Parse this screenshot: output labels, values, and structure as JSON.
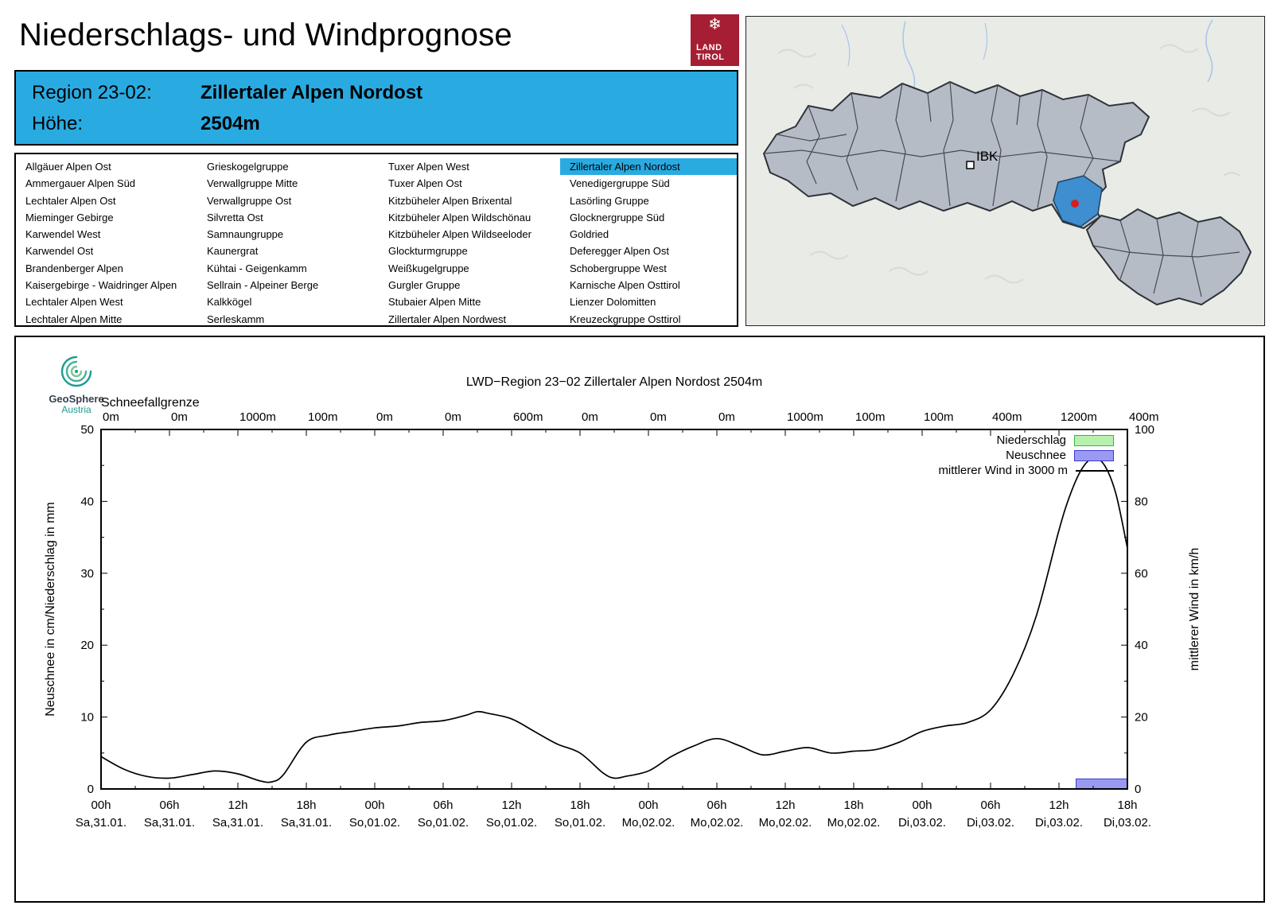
{
  "ui_colors": {
    "accent_cyan": "#29abe2",
    "land_tirol_red": "#a61e33",
    "map_highlight_blue": "#3e8ed0",
    "map_region_gray": "#b5bcc6"
  },
  "header": {
    "title": "Niederschlags- und Windprognose",
    "logo": {
      "line1": "LAND",
      "line2": "TIROL"
    }
  },
  "region_info": {
    "region_label": "Region 23-02:",
    "region_value": "Zillertaler Alpen Nordost",
    "altitude_label": "Höhe:",
    "altitude_value": "2504m"
  },
  "region_list": {
    "selected": "Zillertaler Alpen Nordost",
    "columns": [
      [
        "Allgäuer Alpen Ost",
        "Ammergauer Alpen Süd",
        "Lechtaler Alpen Ost",
        "Mieminger Gebirge",
        "Karwendel West",
        "Karwendel Ost",
        "Brandenberger Alpen",
        "Kaisergebirge - Waidringer Alpen",
        "Lechtaler Alpen West",
        "Lechtaler Alpen Mitte"
      ],
      [
        "Grieskogelgruppe",
        "Verwallgruppe Mitte",
        "Verwallgruppe Ost",
        "Silvretta Ost",
        "Samnaungruppe",
        "Kaunergrat",
        "Kühtai - Geigenkamm",
        "Sellrain - Alpeiner Berge",
        "Kalkkögel",
        "Serleskamm"
      ],
      [
        "Tuxer Alpen West",
        "Tuxer Alpen Ost",
        "Kitzbüheler Alpen Brixental",
        "Kitzbüheler Alpen Wildschönau",
        "Kitzbüheler Alpen Wildseeloder",
        "Glockturmgruppe",
        "Weißkugelgruppe",
        "Gurgler Gruppe",
        "Stubaier Alpen Mitte",
        "Zillertaler Alpen Nordwest"
      ],
      [
        "Zillertaler Alpen Nordost",
        "Venedigergruppe Süd",
        "Lasörling Gruppe",
        "Glocknergruppe Süd",
        "Goldried",
        "Deferegger Alpen Ost",
        "Schobergruppe West",
        "Karnische Alpen Osttirol",
        "Lienzer Dolomitten",
        "Kreuzeckgruppe Osttirol"
      ]
    ]
  },
  "map": {
    "city_label": "IBK"
  },
  "chart_logo": {
    "name": "GeoSphere",
    "sub": "Austria"
  },
  "chart_data": {
    "type": "line",
    "title": "LWD−Region 23−02 Zillertaler Alpen Nordost 2504m",
    "x_range_hours": [
      0,
      90
    ],
    "x_tick_step_hours": 6,
    "x_ticks": [
      {
        "hour": "00h",
        "date": "Sa,31.01."
      },
      {
        "hour": "06h",
        "date": "Sa,31.01."
      },
      {
        "hour": "12h",
        "date": "Sa,31.01."
      },
      {
        "hour": "18h",
        "date": "Sa,31.01."
      },
      {
        "hour": "00h",
        "date": "So,01.02."
      },
      {
        "hour": "06h",
        "date": "So,01.02."
      },
      {
        "hour": "12h",
        "date": "So,01.02."
      },
      {
        "hour": "18h",
        "date": "So,01.02."
      },
      {
        "hour": "00h",
        "date": "Mo,02.02."
      },
      {
        "hour": "06h",
        "date": "Mo,02.02."
      },
      {
        "hour": "12h",
        "date": "Mo,02.02."
      },
      {
        "hour": "18h",
        "date": "Mo,02.02."
      },
      {
        "hour": "00h",
        "date": "Di,03.02."
      },
      {
        "hour": "06h",
        "date": "Di,03.02."
      },
      {
        "hour": "12h",
        "date": "Di,03.02."
      },
      {
        "hour": "18h",
        "date": "Di,03.02."
      }
    ],
    "snowline": {
      "label": "Schneefallgrenze",
      "values": [
        "0m",
        "0m",
        "1000m",
        "100m",
        "0m",
        "0m",
        "600m",
        "0m",
        "0m",
        "0m",
        "1000m",
        "100m",
        "100m",
        "400m",
        "1200m",
        "400m"
      ]
    },
    "y_left": {
      "label": "Neuschnee in cm/Niederschlag in mm",
      "range": [
        0,
        50
      ],
      "ticks": [
        0,
        10,
        20,
        30,
        40,
        50
      ]
    },
    "y_right": {
      "label": "mittlerer Wind in km/h",
      "range": [
        0,
        100
      ],
      "ticks": [
        0,
        20,
        40,
        60,
        80,
        100
      ]
    },
    "legend": [
      {
        "label": "Niederschlag"
      },
      {
        "label": "Neuschnee"
      },
      {
        "label": "mittlerer Wind in 3000 m"
      }
    ],
    "colors": {
      "niederschlag_fill": "#b6f2ae",
      "niederschlag_border": "#3cb43c",
      "neuschnee_fill": "#9a9af2",
      "neuschnee_border": "#3a3ad2",
      "wind_line": "#000000"
    },
    "wind": {
      "label": "mittlerer Wind in 3000 m",
      "axis": "right",
      "unit": "km/h",
      "t_hours": [
        0,
        2,
        4,
        6,
        8,
        10,
        12,
        14,
        15,
        16,
        18,
        20,
        22,
        24,
        26,
        28,
        30,
        32,
        33,
        34,
        36,
        38,
        40,
        42,
        44,
        45,
        46,
        48,
        50,
        52,
        54,
        56,
        58,
        60,
        62,
        64,
        66,
        68,
        70,
        72,
        74,
        76,
        78,
        80,
        82,
        84,
        85,
        86,
        87,
        88,
        89,
        90
      ],
      "values_kmh": [
        9,
        5.5,
        3.5,
        3,
        4,
        5,
        4.2,
        2.2,
        2,
        4,
        13,
        15,
        16,
        17,
        17.5,
        18.5,
        19,
        20.5,
        21.5,
        21,
        19.5,
        16,
        12.5,
        10,
        4.5,
        3,
        3.5,
        5,
        9,
        12,
        14,
        12,
        9.5,
        10.5,
        11.5,
        10,
        10.5,
        11,
        13,
        16,
        17.5,
        18.5,
        22,
        32,
        48,
        72,
        82,
        89,
        92,
        90,
        82,
        67
      ]
    },
    "series_bars": [
      {
        "name_key": "niederschlag",
        "label": "Niederschlag",
        "unit": "mm",
        "axis": "left",
        "fill": "niederschlag_fill",
        "border": "niederschlag_border",
        "bars": []
      },
      {
        "name_key": "neuschnee",
        "label": "Neuschnee",
        "unit": "cm",
        "axis": "left",
        "fill": "neuschnee_fill",
        "border": "neuschnee_border",
        "bars": [
          {
            "t_start": 85.5,
            "t_end": 90,
            "value": 1.4
          }
        ]
      }
    ]
  }
}
